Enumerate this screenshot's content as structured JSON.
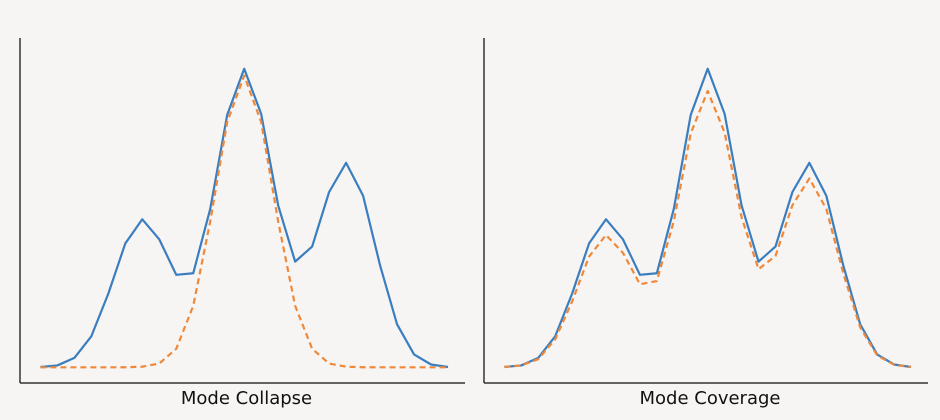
{
  "chart_data": [
    {
      "type": "line",
      "xlabel": "Mode Collapse",
      "x": [
        0,
        1,
        2,
        3,
        4,
        5,
        6,
        7,
        8,
        9,
        10,
        11,
        12,
        13,
        14,
        15,
        16,
        17,
        18,
        19,
        20,
        21,
        22,
        23,
        24
      ],
      "xlim": [
        -1.2,
        25
      ],
      "ylim": [
        -0.05,
        1.05
      ],
      "grid": false,
      "series": [
        {
          "color": "#3a7ebf",
          "dash": false,
          "values": [
            0.001,
            0.006,
            0.03,
            0.099,
            0.235,
            0.395,
            0.472,
            0.408,
            0.295,
            0.3,
            0.505,
            0.805,
            0.952,
            0.808,
            0.516,
            0.337,
            0.385,
            0.559,
            0.652,
            0.547,
            0.325,
            0.137,
            0.041,
            0.009,
            0.001
          ]
        },
        {
          "color": "#f0883a",
          "dash": true,
          "values": [
            0,
            0,
            0,
            0,
            0,
            0.0002,
            0.002,
            0.012,
            0.059,
            0.196,
            0.465,
            0.782,
            0.93,
            0.782,
            0.465,
            0.196,
            0.059,
            0.012,
            0.002,
            0.0002,
            0,
            0,
            0,
            0,
            0
          ]
        }
      ]
    },
    {
      "type": "line",
      "xlabel": "Mode Coverage",
      "x": [
        0,
        1,
        2,
        3,
        4,
        5,
        6,
        7,
        8,
        9,
        10,
        11,
        12,
        13,
        14,
        15,
        16,
        17,
        18,
        19,
        20,
        21,
        22,
        23,
        24
      ],
      "xlim": [
        -1.2,
        25
      ],
      "ylim": [
        -0.05,
        1.05
      ],
      "grid": false,
      "series": [
        {
          "color": "#3a7ebf",
          "dash": false,
          "values": [
            0.001,
            0.006,
            0.03,
            0.099,
            0.235,
            0.395,
            0.472,
            0.408,
            0.295,
            0.3,
            0.505,
            0.805,
            0.952,
            0.808,
            0.516,
            0.337,
            0.385,
            0.559,
            0.652,
            0.547,
            0.325,
            0.137,
            0.041,
            0.009,
            0.001
          ]
        },
        {
          "color": "#f0883a",
          "dash": true,
          "values": [
            0.001,
            0.006,
            0.026,
            0.089,
            0.21,
            0.353,
            0.422,
            0.365,
            0.265,
            0.275,
            0.466,
            0.746,
            0.881,
            0.748,
            0.478,
            0.313,
            0.355,
            0.517,
            0.602,
            0.505,
            0.3,
            0.127,
            0.038,
            0.008,
            0.001
          ]
        }
      ]
    }
  ]
}
